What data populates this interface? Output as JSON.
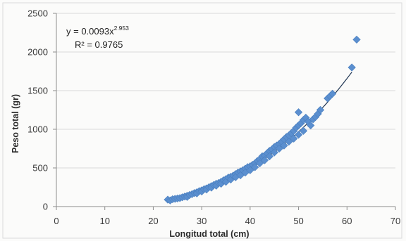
{
  "chart_data": {
    "type": "scatter",
    "xlabel": "Longitud total (cm)",
    "ylabel": "Peso total (gr)",
    "xlim": [
      0,
      70
    ],
    "ylim": [
      0,
      2500
    ],
    "x_ticks": [
      "0",
      "10",
      "20",
      "30",
      "40",
      "50",
      "60",
      "70"
    ],
    "y_ticks": [
      "0",
      "500",
      "1000",
      "1500",
      "2000",
      "2500"
    ],
    "grid": "horizontal",
    "legend": "none",
    "trendline": {
      "type": "power",
      "coefficient": 0.0093,
      "exponent": 2.953,
      "equation_base": "y = 0.0093x",
      "equation_exponent": "2.953",
      "r_squared_label": "R² = 0.9765"
    },
    "series": [
      {
        "marker": "diamond",
        "points": [
          [
            23,
            90
          ],
          [
            23.5,
            80
          ],
          [
            24,
            95
          ],
          [
            24.5,
            100
          ],
          [
            25,
            105
          ],
          [
            25.5,
            110
          ],
          [
            26,
            120
          ],
          [
            26.5,
            130
          ],
          [
            27,
            140
          ],
          [
            27,
            125
          ],
          [
            27.5,
            150
          ],
          [
            28,
            160
          ],
          [
            28.5,
            175
          ],
          [
            29,
            185
          ],
          [
            29,
            170
          ],
          [
            29.5,
            200
          ],
          [
            30,
            210
          ],
          [
            30,
            195
          ],
          [
            30.5,
            225
          ],
          [
            31,
            235
          ],
          [
            31,
            220
          ],
          [
            31.5,
            250
          ],
          [
            32,
            265
          ],
          [
            32,
            245
          ],
          [
            32.5,
            280
          ],
          [
            33,
            295
          ],
          [
            33,
            270
          ],
          [
            33.5,
            305
          ],
          [
            34,
            320
          ],
          [
            34,
            295
          ],
          [
            34.5,
            340
          ],
          [
            35,
            355
          ],
          [
            35,
            320
          ],
          [
            35.5,
            375
          ],
          [
            36,
            385
          ],
          [
            36,
            350
          ],
          [
            36.5,
            400
          ],
          [
            37,
            420
          ],
          [
            37,
            380
          ],
          [
            37.5,
            440
          ],
          [
            38,
            455
          ],
          [
            38,
            405
          ],
          [
            38.5,
            470
          ],
          [
            39,
            490
          ],
          [
            39,
            440
          ],
          [
            39.5,
            510
          ],
          [
            40,
            520
          ],
          [
            40,
            470
          ],
          [
            40.5,
            540
          ],
          [
            41,
            560
          ],
          [
            41,
            510
          ],
          [
            41.5,
            590
          ],
          [
            42,
            610
          ],
          [
            42,
            560
          ],
          [
            42.5,
            650
          ],
          [
            43,
            660
          ],
          [
            43,
            600
          ],
          [
            43.5,
            690
          ],
          [
            44,
            720
          ],
          [
            44,
            650
          ],
          [
            44.5,
            740
          ],
          [
            45,
            770
          ],
          [
            45,
            700
          ],
          [
            45.5,
            790
          ],
          [
            46,
            810
          ],
          [
            46,
            750
          ],
          [
            46.5,
            840
          ],
          [
            47,
            870
          ],
          [
            47,
            790
          ],
          [
            47.5,
            900
          ],
          [
            48,
            920
          ],
          [
            48,
            840
          ],
          [
            48.5,
            950
          ],
          [
            49,
            980
          ],
          [
            49,
            880
          ],
          [
            49.5,
            1020
          ],
          [
            50,
            1050
          ],
          [
            50,
            930
          ],
          [
            50,
            1220
          ],
          [
            50.5,
            1080
          ],
          [
            51,
            1120
          ],
          [
            51,
            980
          ],
          [
            51.5,
            1150
          ],
          [
            52,
            1100
          ],
          [
            52.5,
            1050
          ],
          [
            53,
            1130
          ],
          [
            53.5,
            1160
          ],
          [
            54,
            1200
          ],
          [
            54.5,
            1250
          ],
          [
            56,
            1400
          ],
          [
            56.5,
            1430
          ],
          [
            57,
            1460
          ],
          [
            61,
            1800
          ],
          [
            62,
            2160
          ]
        ]
      }
    ]
  }
}
